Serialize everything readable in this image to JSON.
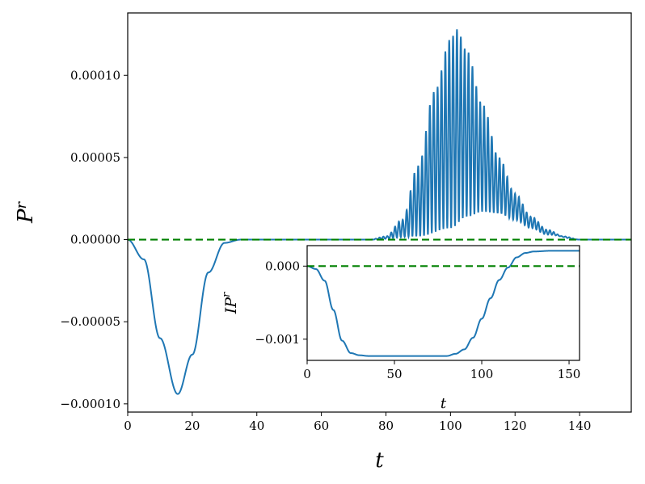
{
  "chart_data": [
    {
      "type": "line",
      "title": "",
      "xlabel": "t",
      "ylabel": "P",
      "ylabel_superscript": "r",
      "xlim": [
        0,
        156
      ],
      "ylim": [
        -0.000105,
        0.000138
      ],
      "x_ticks": [
        0,
        20,
        40,
        60,
        80,
        100,
        120,
        140
      ],
      "x_tick_labels": [
        "0",
        "20",
        "40",
        "60",
        "80",
        "100",
        "120",
        "140"
      ],
      "y_ticks": [
        -0.0001,
        -5e-05,
        0,
        5e-05,
        0.0001
      ],
      "y_tick_labels": [
        "−0.00010",
        "−0.00005",
        "0.00000",
        "0.00005",
        "0.00010"
      ],
      "grid": false,
      "series": [
        {
          "color": "#1f77b4",
          "style": "solid",
          "description_points": {
            "dip": [
              [
                0,
                0
              ],
              [
                5,
                -1.2e-05
              ],
              [
                10,
                -6e-05
              ],
              [
                15.5,
                -9.4e-05
              ],
              [
                20,
                -7e-05
              ],
              [
                25,
                -2e-05
              ],
              [
                30,
                -2e-06
              ],
              [
                35,
                0
              ]
            ],
            "oscillation_envelope_upper": [
              [
                75,
                0
              ],
              [
                80,
                2e-06
              ],
              [
                85,
                1.2e-05
              ],
              [
                90,
                4.5e-05
              ],
              [
                95,
                9e-05
              ],
              [
                100,
                0.000122
              ],
              [
                102,
                0.000128
              ],
              [
                105,
                0.000115
              ],
              [
                110,
                8.2e-05
              ],
              [
                115,
                5e-05
              ],
              [
                120,
                2.8e-05
              ],
              [
                125,
                1.4e-05
              ],
              [
                130,
                6e-06
              ],
              [
                135,
                2e-06
              ],
              [
                140,
                0
              ]
            ],
            "oscillation_envelope_lower": [
              [
                75,
                0
              ],
              [
                90,
                2e-06
              ],
              [
                100,
                7e-06
              ],
              [
                105,
                1.4e-05
              ],
              [
                110,
                1.7e-05
              ],
              [
                115,
                1.6e-05
              ],
              [
                120,
                1.2e-05
              ],
              [
                125,
                7e-06
              ],
              [
                130,
                3e-06
              ],
              [
                140,
                0
              ]
            ]
          },
          "oscillation_period": 1.2
        },
        {
          "color": "#008000",
          "style": "dashed",
          "x": [
            0,
            156
          ],
          "y": [
            0,
            0
          ]
        }
      ]
    },
    {
      "type": "line",
      "title": "",
      "xlabel": "t",
      "ylabel": "IP",
      "ylabel_superscript": "r",
      "xlim": [
        0,
        156
      ],
      "ylim": [
        -0.00129,
        0.00028
      ],
      "x_ticks": [
        0,
        50,
        100,
        150
      ],
      "x_tick_labels": [
        "0",
        "50",
        "100",
        "150"
      ],
      "y_ticks": [
        0,
        -0.001
      ],
      "y_tick_labels": [
        "0.000",
        "−0.001"
      ],
      "grid": false,
      "series": [
        {
          "color": "#1f77b4",
          "style": "solid",
          "x": [
            0,
            5,
            10,
            15,
            20,
            25,
            30,
            35,
            40,
            60,
            80,
            85,
            90,
            95,
            100,
            105,
            110,
            115,
            120,
            125,
            130,
            140,
            156
          ],
          "y": [
            0,
            -4e-05,
            -0.0002,
            -0.0006,
            -0.00102,
            -0.00119,
            -0.00122,
            -0.00123,
            -0.00123,
            -0.00123,
            -0.00123,
            -0.0012,
            -0.00114,
            -0.00098,
            -0.00072,
            -0.00044,
            -0.00019,
            -2e-05,
            0.00012,
            0.00018,
            0.0002,
            0.00021,
            0.00021
          ]
        },
        {
          "color": "#008000",
          "style": "dashed",
          "x": [
            0,
            156
          ],
          "y": [
            0,
            0
          ]
        }
      ]
    }
  ]
}
